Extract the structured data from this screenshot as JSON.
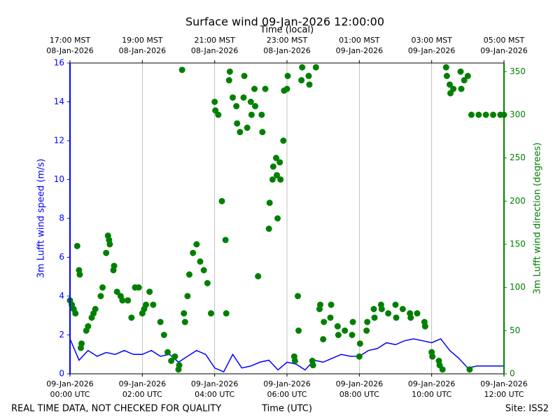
{
  "chart_data": {
    "type": "line",
    "title": "Surface wind 09-Jan-2026 12:00:00",
    "xlabel": "Time (UTC)",
    "x2label": "Time (local)",
    "ylabel": "3m Lufft wind speed (m/s)",
    "y2label": "3m Lufft wind direction (degrees)",
    "footnote_left": "REAL TIME DATA, NOT CHECKED FOR QUALITY",
    "footnote_right": "Site: ISS2",
    "grid": "x",
    "xlim": [
      0,
      12
    ],
    "xticks": [
      {
        "value": 0,
        "label": [
          "09-Jan-2026",
          "00:00 UTC"
        ]
      },
      {
        "value": 2,
        "label": [
          "09-Jan-2026",
          "02:00 UTC"
        ]
      },
      {
        "value": 4,
        "label": [
          "09-Jan-2026",
          "04:00 UTC"
        ]
      },
      {
        "value": 6,
        "label": [
          "09-Jan-2026",
          "06:00 UTC"
        ]
      },
      {
        "value": 8,
        "label": [
          "09-Jan-2026",
          "08:00 UTC"
        ]
      },
      {
        "value": 10,
        "label": [
          "09-Jan-2026",
          "10:00 UTC"
        ]
      },
      {
        "value": 12,
        "label": [
          "09-Jan-2026",
          "12:00 UTC"
        ]
      }
    ],
    "x2ticks": [
      {
        "value": 0,
        "label": [
          "17:00 MST",
          "08-Jan-2026"
        ]
      },
      {
        "value": 2,
        "label": [
          "19:00 MST",
          "08-Jan-2026"
        ]
      },
      {
        "value": 4,
        "label": [
          "21:00 MST",
          "08-Jan-2026"
        ]
      },
      {
        "value": 6,
        "label": [
          "23:00 MST",
          "08-Jan-2026"
        ]
      },
      {
        "value": 8,
        "label": [
          "01:00 MST",
          "09-Jan-2026"
        ]
      },
      {
        "value": 10,
        "label": [
          "03:00 MST",
          "09-Jan-2026"
        ]
      },
      {
        "value": 12,
        "label": [
          "05:00 MST",
          "09-Jan-2026"
        ]
      }
    ],
    "ylim": [
      0,
      16
    ],
    "yticks": [
      0,
      2,
      4,
      6,
      8,
      10,
      12,
      14,
      16
    ],
    "y2lim": [
      0,
      360
    ],
    "y2ticks": [
      0,
      50,
      100,
      150,
      200,
      250,
      300,
      350
    ],
    "ycolor": "#0000ff",
    "y2color": "#008000",
    "series": [
      {
        "type": "line",
        "color": "#0000ff",
        "x": [
          0,
          0.25,
          0.5,
          0.75,
          1,
          1.25,
          1.5,
          1.75,
          2,
          2.25,
          2.5,
          2.75,
          3,
          3.25,
          3.5,
          3.75,
          4,
          4.25,
          4.5,
          4.75,
          5,
          5.25,
          5.5,
          5.75,
          6,
          6.25,
          6.5,
          6.75,
          7,
          7.25,
          7.5,
          7.75,
          8,
          8.25,
          8.5,
          8.75,
          9,
          9.25,
          9.5,
          9.75,
          10,
          10.25,
          10.5,
          10.75,
          11,
          11.25,
          11.5,
          11.75,
          12
        ],
        "values": [
          1.8,
          0.7,
          1.2,
          0.9,
          1.1,
          1.0,
          1.2,
          1.0,
          1.0,
          1.2,
          0.9,
          1.0,
          0.6,
          0.9,
          1.2,
          1.0,
          0.3,
          0.1,
          1.0,
          0.3,
          0.4,
          0.6,
          0.7,
          0.2,
          0.6,
          0.5,
          0.2,
          0.7,
          0.6,
          0.8,
          1.0,
          0.9,
          0.9,
          1.2,
          1.3,
          1.6,
          1.5,
          1.7,
          1.8,
          1.7,
          1.6,
          1.8,
          1.2,
          0.8,
          0.3,
          0.4,
          0.4,
          0.4,
          0.4
        ]
      },
      {
        "type": "scatter",
        "axis": "y2",
        "color": "#008000",
        "x": [
          0.0,
          0.05,
          0.1,
          0.15,
          0.2,
          0.25,
          0.27,
          0.3,
          0.32,
          0.45,
          0.5,
          0.6,
          0.65,
          0.7,
          0.85,
          0.9,
          1.0,
          1.05,
          1.08,
          1.1,
          1.2,
          1.22,
          1.3,
          1.4,
          1.45,
          1.6,
          1.7,
          1.8,
          1.9,
          2.0,
          2.05,
          2.1,
          2.2,
          2.3,
          2.5,
          2.6,
          2.7,
          2.8,
          2.9,
          3.0,
          3.02,
          3.1,
          3.15,
          3.18,
          3.25,
          3.3,
          3.4,
          3.5,
          3.6,
          3.7,
          3.8,
          3.9,
          4.0,
          4.02,
          4.1,
          4.2,
          4.3,
          4.32,
          4.4,
          4.42,
          4.5,
          4.6,
          4.62,
          4.7,
          4.8,
          4.82,
          4.9,
          5.0,
          5.02,
          5.1,
          5.12,
          5.2,
          5.3,
          5.32,
          5.4,
          5.5,
          5.52,
          5.6,
          5.62,
          5.7,
          5.72,
          5.74,
          5.8,
          5.82,
          5.9,
          5.92,
          6.0,
          6.02,
          6.2,
          6.22,
          6.3,
          6.32,
          6.4,
          6.42,
          6.6,
          6.62,
          6.7,
          6.72,
          6.8,
          6.9,
          6.92,
          7.0,
          7.02,
          7.2,
          7.22,
          7.4,
          7.42,
          7.6,
          7.8,
          7.82,
          8.0,
          8.02,
          8.2,
          8.22,
          8.4,
          8.42,
          8.6,
          8.62,
          8.8,
          9.0,
          9.02,
          9.2,
          9.4,
          9.42,
          9.6,
          9.8,
          9.82,
          10.0,
          10.02,
          10.2,
          10.22,
          10.3,
          10.4,
          10.42,
          10.5,
          10.52,
          10.6,
          10.8,
          10.82,
          10.9,
          11.0,
          11.05,
          11.1,
          11.3,
          11.5,
          11.7,
          11.9,
          12.0
        ],
        "values": [
          85,
          80,
          75,
          70,
          148,
          120,
          115,
          30,
          35,
          50,
          55,
          65,
          70,
          75,
          90,
          100,
          140,
          160,
          155,
          150,
          120,
          125,
          95,
          90,
          85,
          85,
          65,
          100,
          100,
          70,
          75,
          80,
          95,
          80,
          60,
          45,
          25,
          15,
          20,
          5,
          10,
          352,
          70,
          60,
          90,
          115,
          140,
          150,
          130,
          120,
          105,
          70,
          315,
          305,
          300,
          200,
          155,
          70,
          340,
          350,
          320,
          310,
          290,
          280,
          320,
          345,
          285,
          315,
          300,
          330,
          310,
          113,
          300,
          280,
          330,
          168,
          198,
          225,
          240,
          250,
          230,
          180,
          245,
          225,
          270,
          328,
          330,
          345,
          20,
          15,
          90,
          50,
          340,
          355,
          345,
          335,
          15,
          10,
          355,
          75,
          80,
          40,
          60,
          65,
          80,
          55,
          45,
          50,
          45,
          60,
          20,
          35,
          50,
          60,
          75,
          65,
          80,
          75,
          70,
          80,
          65,
          75,
          70,
          65,
          70,
          60,
          55,
          25,
          20,
          15,
          10,
          5,
          355,
          345,
          335,
          325,
          330,
          350,
          330,
          340,
          345,
          5,
          300,
          300,
          300,
          300,
          300,
          300
        ]
      }
    ]
  }
}
